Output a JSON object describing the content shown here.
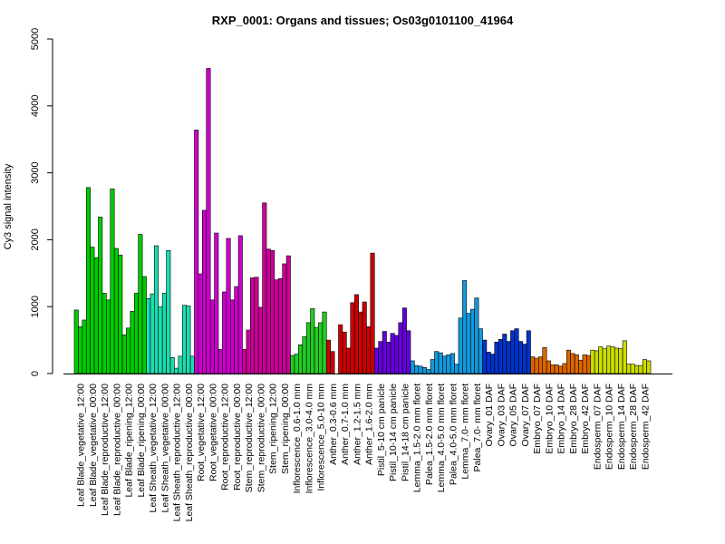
{
  "chart_data": {
    "type": "bar",
    "title": "RXP_0001: Organs and tissues; Os03g0101100_41964",
    "xlabel": "",
    "ylabel": "Cy3 signal intensity",
    "ylim": [
      0,
      5000
    ],
    "yticks": [
      0,
      1000,
      2000,
      3000,
      4000,
      5000
    ],
    "grid": false,
    "legend": "none",
    "categories": [
      "Leaf Blade_vegetative_12:00",
      "Leaf Blade_vegetative_00:00",
      "Leaf Blade_reproductive_12:00",
      "Leaf Blade_reproductive_00:00",
      "Leaf Blade_ripening_12:00",
      "Leaf Blade_ripening_00:00",
      "Leaf Sheath_vegetative_12:00",
      "Leaf Sheath_vegetative_00:00",
      "Leaf Sheath_reproductive_12:00",
      "Leaf Sheath_reproductive_00:00",
      "Root_vegetative_12:00",
      "Root_vegetative_00:00",
      "Root_reproductive_12:00",
      "Root_reproductive_00:00",
      "Stem_reproductive_12:00",
      "Stem_reproductive_00:00",
      "Stem_ripening_12:00",
      "Stem_ripening_00:00",
      "Inflorescence_0.6-1.0 mm",
      "Inflorescence_3.0-4.0 mm",
      "Inflorescence_5.0-10 mm",
      "Anther_0.3-0.6 mm",
      "Anther_0.7-1.0 mm",
      "Anther_1.2-1.5 mm",
      "Anther_1.6-2.0 mm",
      "Pistil_5-10 cm panicle",
      "Pistil_10-14 cm panicle",
      "Pistil_14-18 cm panicle",
      "Lemma_1.5-2.0 mm floret",
      "Palea_1.5-2.0 mm floret",
      "Lemma_4.0-5.0 mm floret",
      "Palea_4.0-5.0 mm floret",
      "Lemma_7.0- mm floret",
      "Palea_7.0- mm floret",
      "Ovary_01 DAF",
      "Ovary_03 DAF",
      "Ovary_05 DAF",
      "Ovary_07 DAF",
      "Embryo_07 DAF",
      "Embryo_10 DAF",
      "Embryo_14 DAF",
      "Embryo_28 DAF",
      "Embryo_42 DAF",
      "Endosperm_07 DAF",
      "Endosperm_10 DAF",
      "Endosperm_14 DAF",
      "Endosperm_28 DAF",
      "Endosperm_42 DAF"
    ],
    "replicates": [
      [
        950,
        700,
        800
      ],
      [
        2780,
        1890,
        1730
      ],
      [
        2340,
        1200,
        1100
      ],
      [
        2760,
        1870,
        1770
      ],
      [
        580,
        680,
        930
      ],
      [
        1200,
        2080,
        1450
      ],
      [
        1120,
        1190,
        1910
      ],
      [
        1000,
        1200,
        1840
      ],
      [
        240,
        80,
        260
      ],
      [
        1020,
        1010,
        260
      ],
      [
        3640,
        1490,
        2440
      ],
      [
        4560,
        1100,
        2100
      ],
      [
        360,
        1220,
        2020
      ],
      [
        1100,
        1300,
        2060
      ],
      [
        360,
        650,
        1430
      ],
      [
        1440,
        990,
        2550
      ],
      [
        1860,
        1840,
        1400
      ],
      [
        1420,
        1640,
        1760
      ],
      [
        270,
        290,
        430
      ],
      [
        550,
        760,
        970
      ],
      [
        690,
        760,
        920
      ],
      [
        500,
        330,
        0
      ],
      [
        730,
        620,
        380
      ],
      [
        1060,
        1180,
        920
      ],
      [
        1070,
        700,
        1800
      ],
      [
        380,
        480,
        630
      ],
      [
        470,
        600,
        570
      ],
      [
        760,
        980,
        640
      ],
      [
        190,
        120,
        110
      ],
      [
        90,
        60,
        210
      ],
      [
        330,
        310,
        260
      ],
      [
        280,
        300,
        140
      ],
      [
        830,
        1390,
        900
      ],
      [
        960,
        1130,
        670
      ],
      [
        500,
        320,
        290
      ],
      [
        470,
        510,
        590
      ],
      [
        480,
        640,
        670
      ],
      [
        480,
        440,
        640
      ],
      [
        250,
        230,
        250
      ],
      [
        390,
        190,
        130
      ],
      [
        130,
        110,
        150
      ],
      [
        350,
        300,
        280
      ],
      [
        200,
        280,
        270
      ],
      [
        350,
        340,
        400
      ],
      [
        370,
        410,
        400
      ],
      [
        380,
        370,
        490
      ],
      [
        140,
        140,
        120
      ],
      [
        120,
        210,
        190
      ]
    ],
    "bar_colors": [
      "#00cc00",
      "#00cc00",
      "#00cc00",
      "#00cc00",
      "#00cc00",
      "#00cc00",
      "#1cddb0",
      "#1cddb0",
      "#1cddb0",
      "#1cddb0",
      "#cc00cc",
      "#cc00cc",
      "#cc00cc",
      "#cc00cc",
      "#cc0099",
      "#cc0099",
      "#cc0099",
      "#cc0099",
      "#22cc22",
      "#22cc22",
      "#22cc22",
      "#cc0000",
      "#cc0000",
      "#cc0000",
      "#cc0000",
      "#6600dd",
      "#6600dd",
      "#6600dd",
      "#1199dd",
      "#1199dd",
      "#1199dd",
      "#1199dd",
      "#1199dd",
      "#1199dd",
      "#0033cc",
      "#0033cc",
      "#0033cc",
      "#0033cc",
      "#dd6600",
      "#dd6600",
      "#dd6600",
      "#dd6600",
      "#dd6600",
      "#ccdd00",
      "#ccdd00",
      "#ccdd00",
      "#ccdd00",
      "#ccdd00"
    ]
  }
}
